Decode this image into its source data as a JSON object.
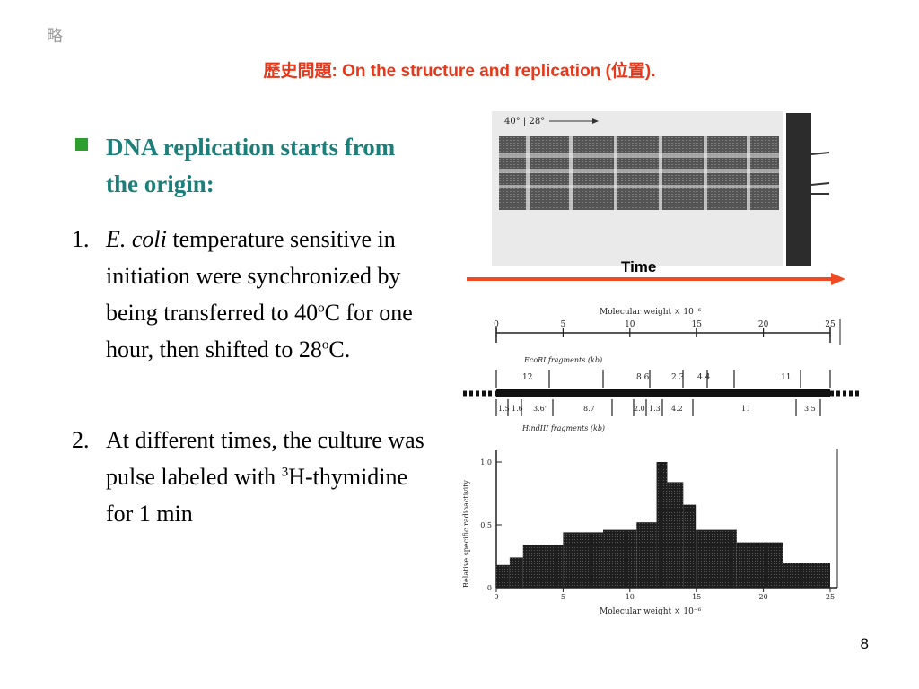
{
  "corner_mark": "略",
  "title": "歷史問題: On the structure and replication (位置).",
  "bullet": "DNA replication starts from the origin:",
  "items": [
    {
      "num": "1.",
      "italic": "E. coli",
      "text": " temperature sensitive in initiation were synchronized by being transferred to 40",
      "sup": "o",
      "text2": "C for one hour, then shifted to 28",
      "sup2": "o",
      "text3": "C."
    },
    {
      "num": "2.",
      "text": "At different times, the culture was pulse labeled with ",
      "sup": "3",
      "text2": "H-thymidine for 1 min"
    }
  ],
  "figure": {
    "gel_label": "40° | 28°",
    "time_label": "Time",
    "map_title": "Molecular weight  ×  10⁻⁶",
    "map_ticks": [
      "0",
      "5",
      "10",
      "15",
      "20",
      "25"
    ],
    "ecori_label": "EcoRI fragments (kb)",
    "ecori_values": [
      "12",
      "8.6",
      "2.3",
      "4.4",
      "11"
    ],
    "hindiii_label": "HindIII fragments (kb)",
    "hindiii_values": [
      "1.5",
      "1.6",
      "3.6'",
      "8.7",
      "2.0",
      "1.3",
      "4.2",
      "11",
      "3.5"
    ],
    "hist_ylabel": "Relative specific radioactivity",
    "hist_yticks": [
      "1.0",
      "0.5",
      "0"
    ],
    "hist_xticks": [
      "0",
      "5",
      "10",
      "15",
      "20",
      "25"
    ],
    "hist_xlabel": "Molecular weight  ×  10⁻⁶"
  },
  "chart_data": {
    "type": "bar",
    "xlabel": "Molecular weight × 10^-6",
    "ylabel": "Relative specific radioactivity",
    "xlim": [
      0,
      25
    ],
    "ylim": [
      0,
      1.0
    ],
    "bins": [
      {
        "x0": 0,
        "x1": 1,
        "v": 0.18
      },
      {
        "x0": 1,
        "x1": 2,
        "v": 0.24
      },
      {
        "x0": 2,
        "x1": 5,
        "v": 0.34
      },
      {
        "x0": 5,
        "x1": 8,
        "v": 0.44
      },
      {
        "x0": 8,
        "x1": 10.5,
        "v": 0.46
      },
      {
        "x0": 10.5,
        "x1": 12,
        "v": 0.52
      },
      {
        "x0": 12,
        "x1": 12.8,
        "v": 1.0
      },
      {
        "x0": 12.8,
        "x1": 14,
        "v": 0.84
      },
      {
        "x0": 14,
        "x1": 15,
        "v": 0.66
      },
      {
        "x0": 15,
        "x1": 18,
        "v": 0.46
      },
      {
        "x0": 18,
        "x1": 21.5,
        "v": 0.36
      },
      {
        "x0": 21.5,
        "x1": 25,
        "v": 0.2
      }
    ]
  }
}
